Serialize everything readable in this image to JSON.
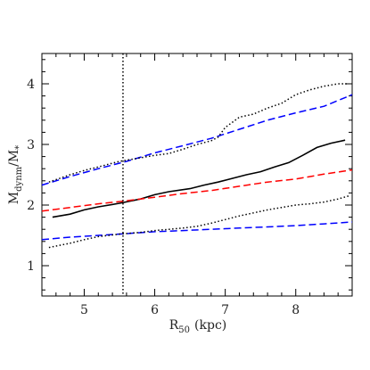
{
  "chart_data": {
    "type": "line",
    "title": "",
    "xlabel": "R",
    "xlabel_sub": "50",
    "xlabel_unit": "(kpc)",
    "ylabel": "M",
    "ylabel_sub": "dynm",
    "ylabel_denom": "/M",
    "ylabel_denom_sub": "*",
    "xlim": [
      4.4,
      8.8
    ],
    "ylim": [
      0.5,
      4.5
    ],
    "xticks": [
      "5",
      "6",
      "7",
      "8"
    ],
    "yticks": [
      "1",
      "2",
      "3",
      "4"
    ],
    "vline_x": 5.55,
    "grid": false,
    "series": [
      {
        "color": "#000000",
        "style": "solid",
        "x": [
          4.55,
          4.8,
          5.0,
          5.2,
          5.5,
          5.8,
          6.0,
          6.2,
          6.5,
          6.7,
          6.9,
          7.1,
          7.3,
          7.5,
          7.7,
          7.9,
          8.1,
          8.3,
          8.5,
          8.7
        ],
        "y": [
          1.8,
          1.85,
          1.92,
          1.97,
          2.03,
          2.1,
          2.17,
          2.22,
          2.27,
          2.33,
          2.38,
          2.44,
          2.5,
          2.55,
          2.63,
          2.7,
          2.82,
          2.95,
          3.02,
          3.07
        ]
      },
      {
        "color": "#ff0000",
        "style": "dashed",
        "x": [
          4.4,
          4.8,
          5.2,
          5.6,
          6.0,
          6.4,
          6.8,
          7.2,
          7.6,
          8.0,
          8.4,
          8.8
        ],
        "y": [
          1.9,
          1.96,
          2.02,
          2.07,
          2.13,
          2.19,
          2.24,
          2.31,
          2.38,
          2.43,
          2.51,
          2.58
        ]
      },
      {
        "color": "#0000ff",
        "style": "dashed",
        "x": [
          4.4,
          4.8,
          5.2,
          5.6,
          6.0,
          6.4,
          6.8,
          7.2,
          7.6,
          8.0,
          8.4,
          8.8
        ],
        "y": [
          2.33,
          2.47,
          2.6,
          2.72,
          2.86,
          2.98,
          3.1,
          3.25,
          3.4,
          3.52,
          3.63,
          3.82
        ]
      },
      {
        "color": "#0000ff",
        "style": "dashed",
        "x": [
          4.4,
          4.8,
          5.2,
          5.6,
          6.0,
          6.4,
          6.8,
          7.2,
          7.6,
          8.0,
          8.4,
          8.8
        ],
        "y": [
          1.43,
          1.47,
          1.5,
          1.53,
          1.56,
          1.58,
          1.6,
          1.62,
          1.64,
          1.66,
          1.69,
          1.72
        ]
      },
      {
        "color": "#000000",
        "style": "dotted",
        "x": [
          4.5,
          4.8,
          5.0,
          5.2,
          5.5,
          5.8,
          6.0,
          6.2,
          6.4,
          6.6,
          6.8,
          6.9,
          7.0,
          7.2,
          7.4,
          7.6,
          7.8,
          8.0,
          8.2,
          8.4,
          8.6,
          8.75
        ],
        "y": [
          2.38,
          2.5,
          2.57,
          2.63,
          2.72,
          2.78,
          2.82,
          2.85,
          2.92,
          3.0,
          3.06,
          3.12,
          3.28,
          3.45,
          3.5,
          3.6,
          3.68,
          3.82,
          3.9,
          3.96,
          4.0,
          4.0
        ]
      },
      {
        "color": "#000000",
        "style": "dotted",
        "x": [
          4.5,
          4.8,
          5.0,
          5.2,
          5.5,
          5.8,
          6.0,
          6.2,
          6.4,
          6.6,
          6.8,
          7.0,
          7.2,
          7.4,
          7.6,
          7.8,
          8.0,
          8.2,
          8.4,
          8.6,
          8.75
        ],
        "y": [
          1.3,
          1.37,
          1.43,
          1.48,
          1.52,
          1.55,
          1.58,
          1.6,
          1.62,
          1.65,
          1.7,
          1.76,
          1.82,
          1.87,
          1.92,
          1.96,
          2.0,
          2.02,
          2.05,
          2.1,
          2.15
        ]
      }
    ]
  }
}
